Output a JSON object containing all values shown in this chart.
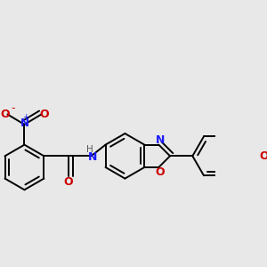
{
  "bg_color": "#e8e8e8",
  "bond_color": "#000000",
  "bond_width": 1.4,
  "figsize": [
    3.0,
    3.0
  ],
  "dpi": 100,
  "xlim": [
    -1.0,
    8.5
  ],
  "ylim": [
    -1.5,
    4.5
  ]
}
